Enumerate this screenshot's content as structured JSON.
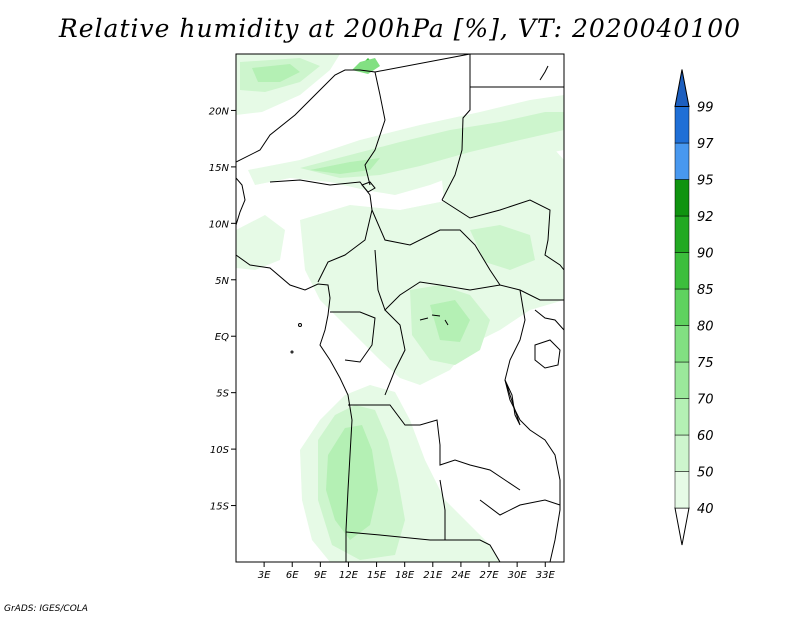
{
  "title": "Relative humidity at 200hPa [%], VT: 2020040100",
  "credit": "GrADS: IGES/COLA",
  "map": {
    "lon_range": [
      0,
      35
    ],
    "lat_range": [
      -20,
      25
    ],
    "lat_ticks": [
      {
        "value": 20,
        "label": "20N"
      },
      {
        "value": 15,
        "label": "15N"
      },
      {
        "value": 10,
        "label": "10N"
      },
      {
        "value": 5,
        "label": "5N"
      },
      {
        "value": 0,
        "label": "EQ"
      },
      {
        "value": -5,
        "label": "5S"
      },
      {
        "value": -10,
        "label": "10S"
      },
      {
        "value": -15,
        "label": "15S"
      }
    ],
    "lon_ticks": [
      {
        "value": 3,
        "label": "3E"
      },
      {
        "value": 6,
        "label": "6E"
      },
      {
        "value": 9,
        "label": "9E"
      },
      {
        "value": 12,
        "label": "12E"
      },
      {
        "value": 15,
        "label": "15E"
      },
      {
        "value": 18,
        "label": "18E"
      },
      {
        "value": 21,
        "label": "21E"
      },
      {
        "value": 24,
        "label": "24E"
      },
      {
        "value": 27,
        "label": "27E"
      },
      {
        "value": 30,
        "label": "30E"
      },
      {
        "value": 33,
        "label": "33E"
      }
    ]
  },
  "colorbar": {
    "levels": [
      {
        "label": "40",
        "color": "#ffffff"
      },
      {
        "label": "50",
        "color": "#e6fae6"
      },
      {
        "label": "60",
        "color": "#cdf5cd"
      },
      {
        "label": "70",
        "color": "#b4f0b4"
      },
      {
        "label": "75",
        "color": "#9be89b"
      },
      {
        "label": "80",
        "color": "#82e082"
      },
      {
        "label": "85",
        "color": "#5fd25f"
      },
      {
        "label": "90",
        "color": "#3cbe3c"
      },
      {
        "label": "92",
        "color": "#22a922"
      },
      {
        "label": "95",
        "color": "#0f930f"
      },
      {
        "label": "97",
        "color": "#4898ef"
      },
      {
        "label": "99",
        "color": "#1f6fd6"
      }
    ],
    "top_color": "#1d5fbf"
  }
}
